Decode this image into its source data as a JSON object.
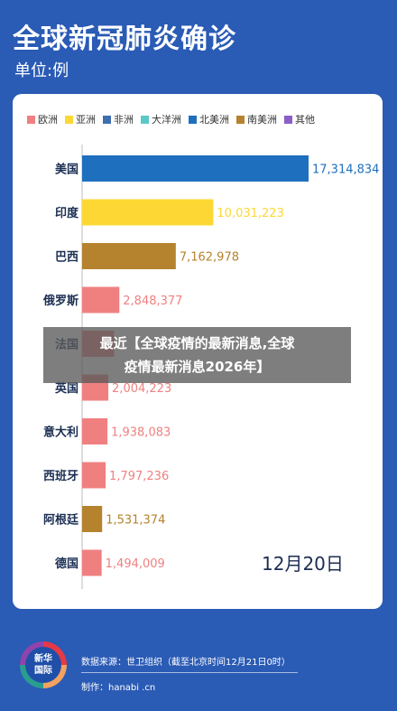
{
  "header": {
    "title": "全球新冠肺炎确诊",
    "unit": "单位:例"
  },
  "legend": [
    {
      "label": "欧洲",
      "color": "#f08080"
    },
    {
      "label": "亚洲",
      "color": "#fdd835"
    },
    {
      "label": "非洲",
      "color": "#3f6fb0"
    },
    {
      "label": "大洋洲",
      "color": "#5bc8c8"
    },
    {
      "label": "北美洲",
      "color": "#1f6fbf"
    },
    {
      "label": "南美洲",
      "color": "#b5832e"
    },
    {
      "label": "其他",
      "color": "#8c5ec7"
    }
  ],
  "chart_data": {
    "type": "bar",
    "orientation": "horizontal",
    "categories": [
      "美国",
      "印度",
      "巴西",
      "俄罗斯",
      "法国",
      "英国",
      "意大利",
      "西班牙",
      "阿根廷",
      "德国"
    ],
    "values": [
      17314834,
      10031223,
      7162978,
      2848377,
      2442990,
      2004223,
      1938083,
      1797236,
      1531374,
      1494009
    ],
    "value_labels": [
      "17,314,834",
      "10,031,223",
      "7,162,978",
      "2,848,377",
      "",
      "2,004,223",
      "1,938,083",
      "1,797,236",
      "1,531,374",
      "1,494,009"
    ],
    "region": [
      "北美洲",
      "亚洲",
      "南美洲",
      "欧洲",
      "欧洲",
      "欧洲",
      "欧洲",
      "欧洲",
      "南美洲",
      "欧洲"
    ],
    "colors": [
      "#1f6fbf",
      "#fdd835",
      "#b5832e",
      "#f08080",
      "#f08080",
      "#f08080",
      "#f08080",
      "#f08080",
      "#b5832e",
      "#f08080"
    ],
    "title": "全球新冠肺炎确诊",
    "xlabel": "",
    "ylabel": "",
    "xlim": [
      0,
      17314834
    ],
    "legend_position": "top"
  },
  "date": "12月20日",
  "overlay": {
    "line1": "最近【全球疫情的最新消息,全球",
    "line2": "疫情最新消息2026年】"
  },
  "footer": {
    "logo_text_1": "新华",
    "logo_text_2": "国际",
    "source": "数据来源：世卫组织（截至北京时间12月21日0时）",
    "credit": "制作：hanabi .cn"
  }
}
